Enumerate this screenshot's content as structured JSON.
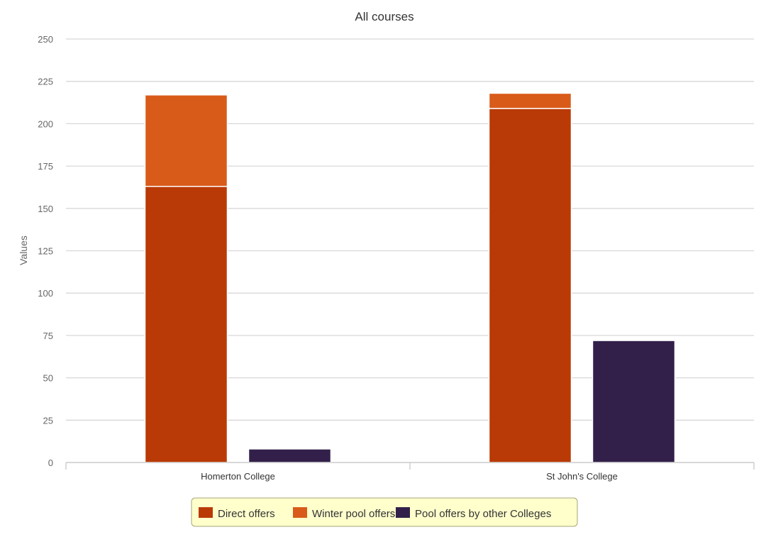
{
  "chart_data": {
    "type": "bar",
    "stacked": true,
    "title": "All courses",
    "xlabel": "",
    "ylabel": "Values",
    "ylim": [
      0,
      250
    ],
    "yticks": [
      0,
      25,
      50,
      75,
      100,
      125,
      150,
      175,
      200,
      225,
      250
    ],
    "grid": true,
    "legend_position": "bottom",
    "categories": [
      "Homerton College",
      "St John's College"
    ],
    "series": [
      {
        "name": "Direct offers",
        "stack": "college",
        "color": "#B93A06",
        "values": [
          163,
          209
        ]
      },
      {
        "name": "Winter pool offers",
        "stack": "college",
        "color": "#D95B19",
        "values": [
          54,
          9
        ]
      },
      {
        "name": "Pool offers by other Colleges",
        "stack": "other",
        "color": "#32204A",
        "values": [
          8,
          72
        ]
      }
    ]
  }
}
